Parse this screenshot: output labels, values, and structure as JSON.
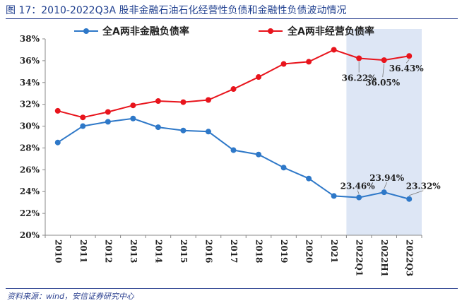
{
  "header": {
    "title": "图 17：2010-2022Q3A 股非金融石油石化经营性负债和金融性负债波动情况"
  },
  "footer": {
    "source": "资料来源：wind，安信证券研究中心"
  },
  "chart_data": {
    "type": "line",
    "categories": [
      "2010",
      "2011",
      "2012",
      "2013",
      "2014",
      "2015",
      "2016",
      "2017",
      "2018",
      "2019",
      "2020",
      "2021",
      "2022Q1",
      "2022H1",
      "2022Q3"
    ],
    "series": [
      {
        "name": "全A两非金融负债率",
        "color": "#2e78c8",
        "values": [
          28.5,
          30.0,
          30.4,
          30.7,
          29.9,
          29.6,
          29.5,
          27.8,
          27.4,
          26.2,
          25.2,
          23.6,
          23.46,
          23.94,
          23.32
        ]
      },
      {
        "name": "全A两非经营负债率",
        "color": "#e8141c",
        "values": [
          31.4,
          30.8,
          31.3,
          31.9,
          32.3,
          32.2,
          32.4,
          33.4,
          34.5,
          35.7,
          35.9,
          37.0,
          36.22,
          36.05,
          36.43
        ]
      }
    ],
    "data_labels": [
      {
        "series": 1,
        "index": 12,
        "text": "36.22%"
      },
      {
        "series": 1,
        "index": 13,
        "text": "36.05%"
      },
      {
        "series": 1,
        "index": 14,
        "text": "36.43%"
      },
      {
        "series": 0,
        "index": 12,
        "text": "23.46%"
      },
      {
        "series": 0,
        "index": 13,
        "text": "23.94%"
      },
      {
        "series": 0,
        "index": 14,
        "text": "23.32%"
      }
    ],
    "ylim": [
      20,
      38
    ],
    "yticks": [
      20,
      22,
      24,
      26,
      28,
      30,
      32,
      34,
      36,
      38
    ],
    "y_tick_format": "%",
    "highlight": {
      "from_category": "2022Q1",
      "to_category": "2022Q3",
      "color": "#dde6f5"
    },
    "legend_position": "top"
  }
}
